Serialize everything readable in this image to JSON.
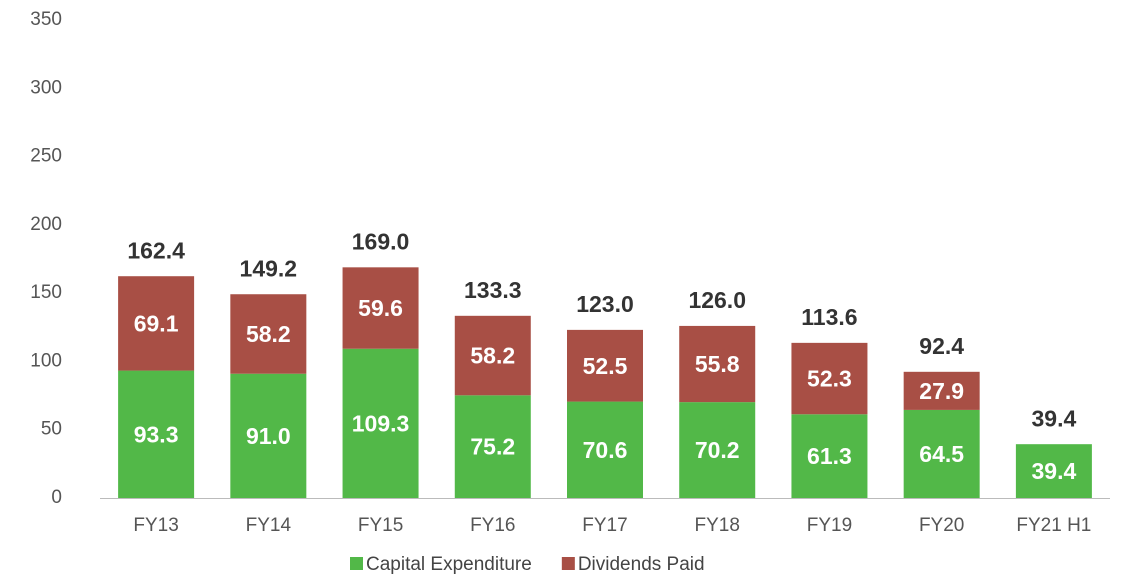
{
  "chart_data": {
    "type": "stacked_bar",
    "categories": [
      "FY13",
      "FY14",
      "FY15",
      "FY16",
      "FY17",
      "FY18",
      "FY19",
      "FY20",
      "FY21 H1"
    ],
    "series": [
      {
        "name": "Capital Expenditure",
        "color": "#52b848",
        "values": [
          93.3,
          91.0,
          109.3,
          75.2,
          70.6,
          70.2,
          61.3,
          64.5,
          39.4
        ],
        "value_labels": [
          "93.3",
          "91.0",
          "109.3",
          "75.2",
          "70.6",
          "70.2",
          "61.3",
          "64.5",
          "39.4"
        ]
      },
      {
        "name": "Dividends Paid",
        "color": "#a84f45",
        "values": [
          69.1,
          58.2,
          59.6,
          58.2,
          52.5,
          55.8,
          52.3,
          27.9,
          null
        ],
        "value_labels": [
          "69.1",
          "58.2",
          "59.6",
          "58.2",
          "52.5",
          "55.8",
          "52.3",
          "27.9",
          null
        ]
      }
    ],
    "totals": [
      162.4,
      149.2,
      169.0,
      133.3,
      123.0,
      126.0,
      113.6,
      92.4,
      39.4
    ],
    "total_labels": [
      "162.4",
      "149.2",
      "169.0",
      "133.3",
      "123.0",
      "126.0",
      "113.6",
      "92.4",
      "39.4"
    ],
    "ylim": [
      0,
      350
    ],
    "yticks": [
      0,
      50,
      100,
      150,
      200,
      250,
      300,
      350
    ],
    "legend": "bottom",
    "grid": false
  }
}
